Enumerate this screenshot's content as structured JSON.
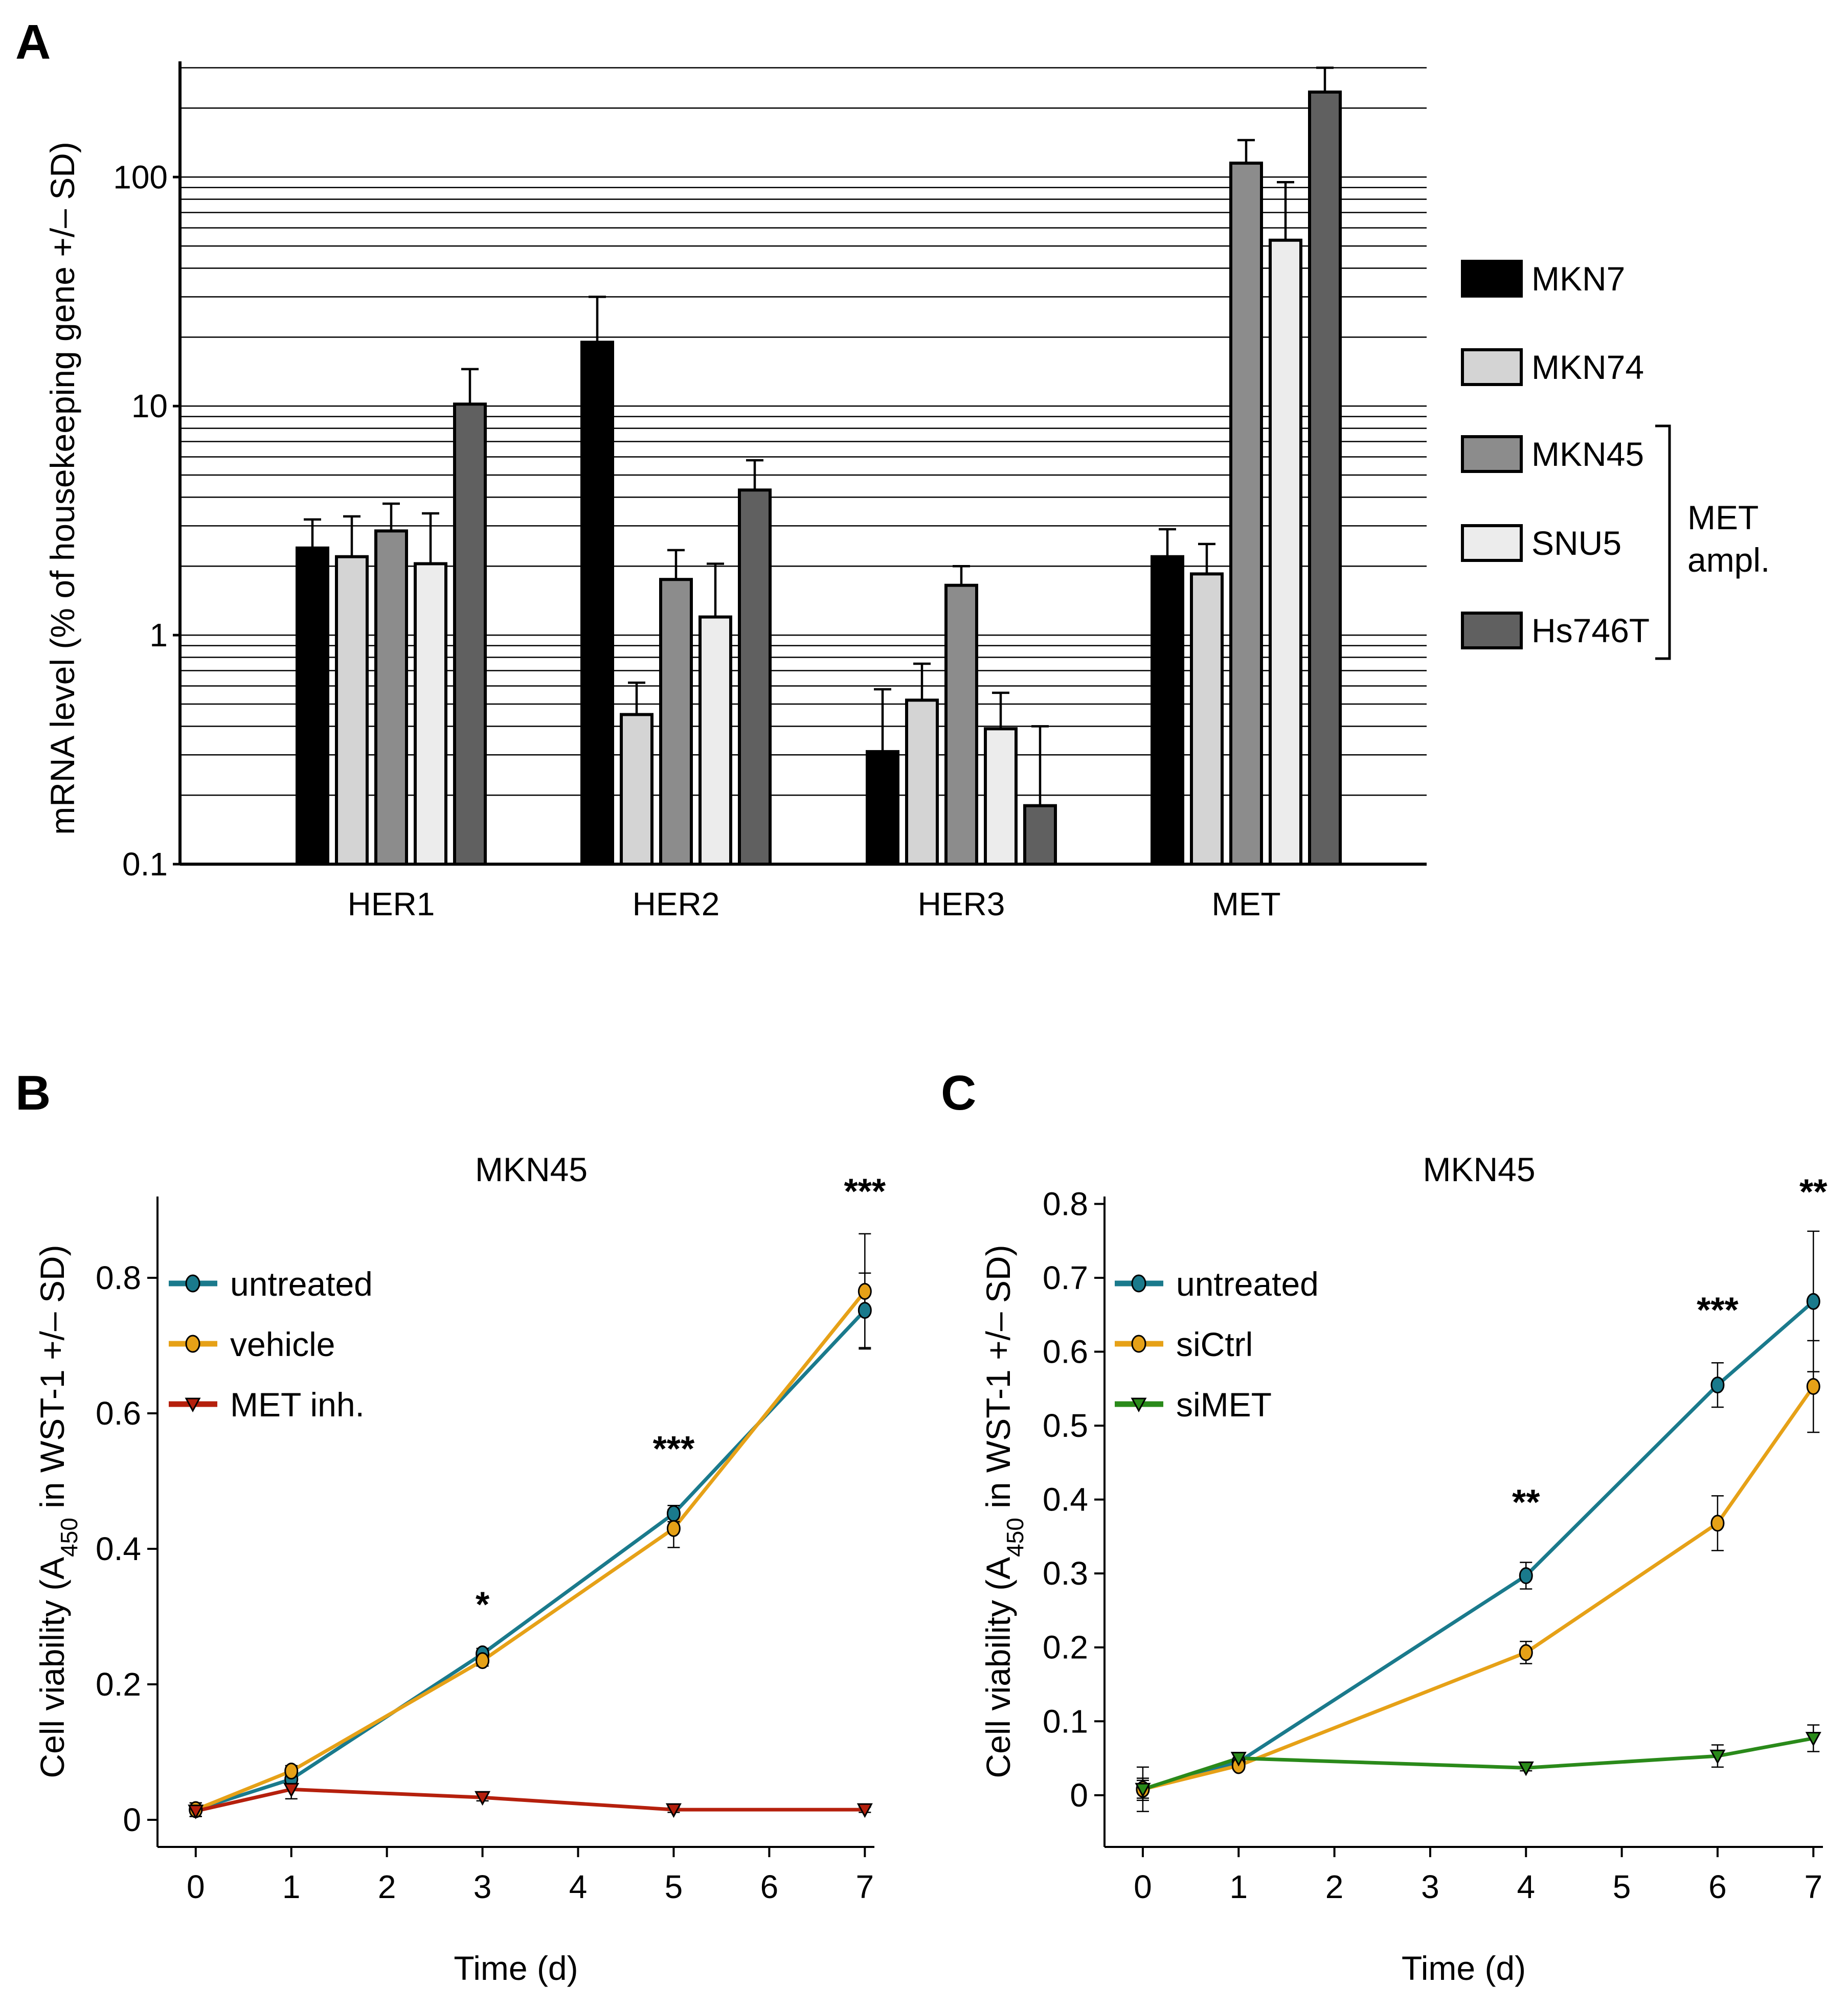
{
  "panels": {
    "A": {
      "letter": "A"
    },
    "B": {
      "letter": "B"
    },
    "C": {
      "letter": "C"
    }
  },
  "chart_data": [
    {
      "id": "A",
      "type": "bar",
      "scale": "log",
      "ylabel": "mRNA level (% of housekeeping gene +/– SD)",
      "ylim": [
        0.1,
        320
      ],
      "yticks": [
        0.1,
        1,
        10,
        100
      ],
      "ytick_labels": [
        "0.1",
        "1",
        "10",
        "100"
      ],
      "categories": [
        "HER1",
        "HER2",
        "HER3",
        "MET"
      ],
      "series": [
        {
          "name": "MKN7",
          "color": "#000000",
          "values": [
            2.4,
            19,
            0.31,
            2.2
          ],
          "errors": [
            3.2,
            30,
            0.58,
            2.9
          ]
        },
        {
          "name": "MKN74",
          "color": "#d4d4d4",
          "values": [
            2.2,
            0.45,
            0.52,
            1.85
          ],
          "errors": [
            3.3,
            0.62,
            0.75,
            2.5
          ]
        },
        {
          "name": "MKN45",
          "color": "#8c8c8c",
          "values": [
            2.85,
            1.75,
            1.65,
            115
          ],
          "errors": [
            3.75,
            2.35,
            2.0,
            145
          ]
        },
        {
          "name": "SNU5",
          "color": "#ececec",
          "values": [
            2.05,
            1.2,
            0.39,
            53
          ],
          "errors": [
            3.4,
            2.05,
            0.56,
            95
          ]
        },
        {
          "name": "Hs746T",
          "color": "#606060",
          "values": [
            10.2,
            4.3,
            0.18,
            235
          ],
          "errors": [
            14.5,
            5.8,
            0.4,
            300
          ]
        }
      ],
      "bracket_label_line1": "MET",
      "bracket_label_line2": "ampl."
    },
    {
      "id": "B",
      "type": "line",
      "title": "MKN45",
      "xlabel": "Time (d)",
      "ylabel_prefix": "Cell viability (A",
      "ylabel_sub": "450",
      "ylabel_suffix": " in WST-1 +/– SD)",
      "xlim": [
        -0.4,
        7.1
      ],
      "ylim": [
        -0.04,
        0.92
      ],
      "xticks": [
        0,
        1,
        2,
        3,
        4,
        5,
        6,
        7
      ],
      "yticks": [
        0,
        0.2,
        0.4,
        0.6,
        0.8
      ],
      "ytick_labels": [
        "0",
        "0.2",
        "0.4",
        "0.6",
        "0.8"
      ],
      "series": [
        {
          "name": "untreated",
          "color": "#1a7a8c",
          "marker": "circle",
          "x": [
            0,
            1,
            3,
            5,
            7
          ],
          "y": [
            0.015,
            0.06,
            0.245,
            0.452,
            0.752
          ],
          "err": [
            0.01,
            0.008,
            0.008,
            0.012,
            0.055
          ]
        },
        {
          "name": "vehicle",
          "color": "#e6a117",
          "marker": "circle",
          "x": [
            0,
            1,
            3,
            5,
            7
          ],
          "y": [
            0.015,
            0.072,
            0.235,
            0.43,
            0.78
          ],
          "err": [
            0.01,
            0.008,
            0.008,
            0.028,
            0.085
          ]
        },
        {
          "name": "MET inh.",
          "color": "#b5200d",
          "marker": "triangle",
          "x": [
            0,
            1,
            3,
            5,
            7
          ],
          "y": [
            0.013,
            0.045,
            0.033,
            0.015,
            0.015
          ],
          "err": [
            0.008,
            0.014,
            0.005,
            0.004,
            0.004
          ]
        }
      ],
      "annotations": [
        {
          "x": 3,
          "y": 0.3,
          "text": "*"
        },
        {
          "x": 5,
          "y": 0.53,
          "text": "***"
        },
        {
          "x": 7,
          "y": 0.91,
          "text": "***"
        }
      ]
    },
    {
      "id": "C",
      "type": "line",
      "title": "MKN45",
      "xlabel": "Time (d)",
      "ylabel_prefix": "Cell viability (A",
      "ylabel_sub": "450",
      "ylabel_suffix": " in WST-1 +/– SD)",
      "xlim": [
        -0.4,
        7.1
      ],
      "ylim": [
        -0.07,
        0.81
      ],
      "xticks": [
        0,
        1,
        2,
        3,
        4,
        5,
        6,
        7
      ],
      "yticks": [
        0,
        0.1,
        0.2,
        0.3,
        0.4,
        0.5,
        0.6,
        0.7,
        0.8
      ],
      "ytick_labels": [
        "0",
        "0.1",
        "0.2",
        "0.3",
        "0.4",
        "0.5",
        "0.6",
        "0.7",
        "0.8"
      ],
      "series": [
        {
          "name": "untreated",
          "color": "#1a7a8c",
          "marker": "circle",
          "x": [
            0,
            1,
            4,
            6,
            7
          ],
          "y": [
            0.008,
            0.045,
            0.297,
            0.555,
            0.668
          ],
          "err": [
            0.015,
            0.005,
            0.018,
            0.03,
            0.095
          ]
        },
        {
          "name": "siCtrl",
          "color": "#e6a117",
          "marker": "circle",
          "x": [
            0,
            1,
            4,
            6,
            7
          ],
          "y": [
            0.008,
            0.04,
            0.193,
            0.368,
            0.553
          ],
          "err": [
            0.012,
            0.005,
            0.015,
            0.037,
            0.062
          ]
        },
        {
          "name": "siMET",
          "color": "#2a8a1a",
          "marker": "triangle",
          "x": [
            0,
            1,
            4,
            6,
            7
          ],
          "y": [
            0.008,
            0.05,
            0.037,
            0.053,
            0.077
          ],
          "err": [
            0.03,
            0.005,
            0.004,
            0.015,
            0.018
          ]
        }
      ],
      "annotations": [
        {
          "x": 4,
          "y": 0.38,
          "text": "**"
        },
        {
          "x": 6,
          "y": 0.64,
          "text": "***"
        },
        {
          "x": 7,
          "y": 0.8,
          "text": "**"
        }
      ]
    }
  ]
}
